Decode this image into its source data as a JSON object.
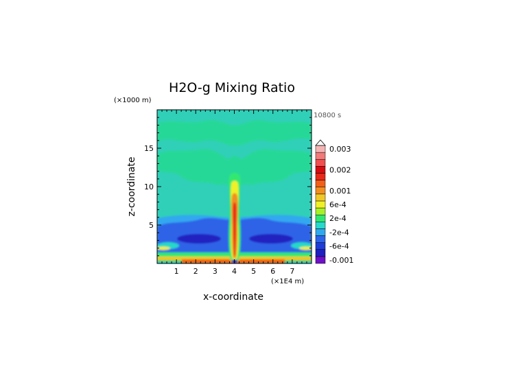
{
  "chart_data": {
    "type": "heatmap",
    "title": "H2O-g Mixing Ratio",
    "time_label": "10800 s",
    "xlabel": "x-coordinate",
    "ylabel": "z-coordinate",
    "x_units": "(×1E4 m)",
    "y_units": "(×1000 m)",
    "xlim": [
      0,
      8
    ],
    "ylim": [
      0,
      20
    ],
    "x_ticks": [
      "1",
      "2",
      "3",
      "4",
      "5",
      "6",
      "7"
    ],
    "y_ticks": [
      "5",
      "10",
      "15"
    ],
    "x_tick_values": [
      1,
      2,
      3,
      4,
      5,
      6,
      7
    ],
    "y_tick_values": [
      5,
      10,
      15
    ],
    "colorbar": {
      "levels": [
        -0.001,
        -0.0008,
        -0.0006,
        -0.0004,
        -0.0002,
        0,
        0.0002,
        0.0004,
        0.0006,
        0.0008,
        0.001,
        0.0012,
        0.0015,
        0.002,
        0.0022,
        0.0025,
        0.003
      ],
      "colors": [
        "#7010c8",
        "#2020c0",
        "#1e3cd8",
        "#2e64e8",
        "#30a8f0",
        "#28d8c8",
        "#30e870",
        "#a8f028",
        "#f0f028",
        "#f0c828",
        "#f09020",
        "#f06018",
        "#e82818",
        "#d80c10",
        "#f05050",
        "#f07a7a",
        "#f4b4b4"
      ],
      "tick_labels": [
        "0.003",
        "0.002",
        "0.001",
        "6e-4",
        "2e-4",
        "-2e-4",
        "-6e-4",
        "-0.001"
      ],
      "tick_values": [
        0.003,
        0.002,
        0.001,
        0.0006,
        0.0002,
        -0.0002,
        -0.0006,
        -0.001
      ]
    },
    "field_description": {
      "background": "#30d0b8",
      "upper_band": "#28d898",
      "low_level_band": "#2e64e8",
      "plume_core": "#f06018"
    }
  }
}
